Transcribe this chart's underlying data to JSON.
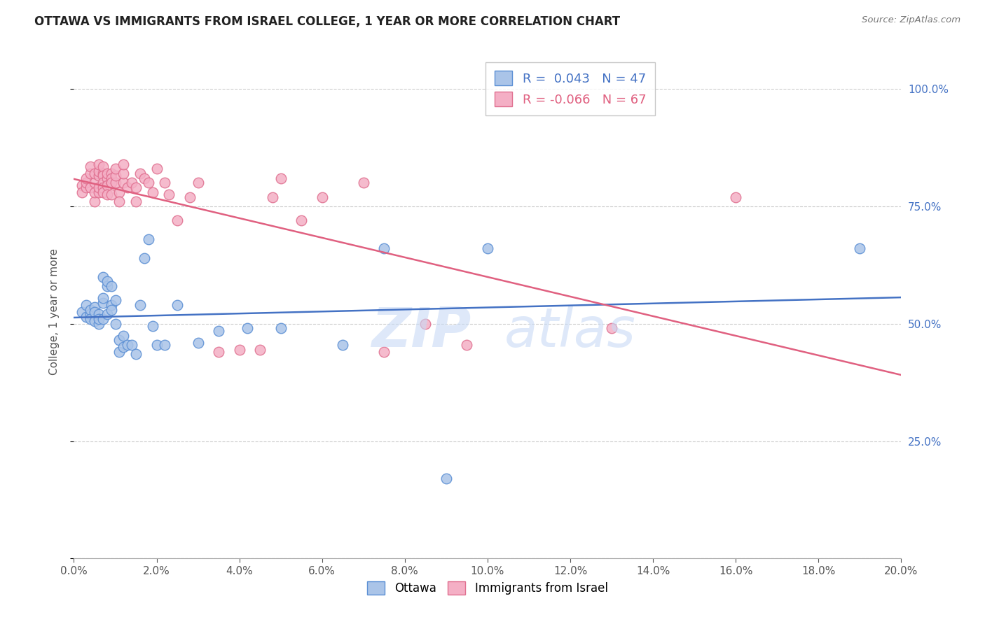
{
  "title": "OTTAWA VS IMMIGRANTS FROM ISRAEL COLLEGE, 1 YEAR OR MORE CORRELATION CHART",
  "source": "Source: ZipAtlas.com",
  "ylabel": "College, 1 year or more",
  "yticks": [
    0.0,
    0.25,
    0.5,
    0.75,
    1.0
  ],
  "ytick_labels": [
    "",
    "25.0%",
    "50.0%",
    "75.0%",
    "100.0%"
  ],
  "xticks": [
    0.0,
    0.02,
    0.04,
    0.06,
    0.08,
    0.1,
    0.12,
    0.14,
    0.16,
    0.18,
    0.2
  ],
  "legend_r_ottawa": "R =  0.043",
  "legend_n_ottawa": "N = 47",
  "legend_r_israel": "R = -0.066",
  "legend_n_israel": "N = 67",
  "ottawa_color": "#aac4e8",
  "israel_color": "#f4afc5",
  "ottawa_edge_color": "#5b8fd4",
  "israel_edge_color": "#e07090",
  "ottawa_line_color": "#4472c4",
  "israel_line_color": "#e06080",
  "watermark_color": "#c8daf5",
  "background_color": "#ffffff",
  "grid_color": "#cccccc",
  "title_color": "#222222",
  "source_color": "#777777",
  "ylabel_color": "#555555",
  "xtick_color": "#555555",
  "ytick_right_color": "#4472c4",
  "ottawa_x": [
    0.002,
    0.003,
    0.003,
    0.004,
    0.004,
    0.004,
    0.005,
    0.005,
    0.005,
    0.006,
    0.006,
    0.006,
    0.007,
    0.007,
    0.007,
    0.007,
    0.008,
    0.008,
    0.008,
    0.009,
    0.009,
    0.009,
    0.01,
    0.01,
    0.011,
    0.011,
    0.012,
    0.012,
    0.013,
    0.014,
    0.015,
    0.016,
    0.017,
    0.018,
    0.019,
    0.02,
    0.022,
    0.025,
    0.03,
    0.035,
    0.042,
    0.05,
    0.065,
    0.075,
    0.09,
    0.1,
    0.19
  ],
  "ottawa_y": [
    0.525,
    0.515,
    0.54,
    0.52,
    0.53,
    0.51,
    0.535,
    0.505,
    0.525,
    0.5,
    0.52,
    0.51,
    0.545,
    0.555,
    0.6,
    0.51,
    0.58,
    0.52,
    0.59,
    0.54,
    0.58,
    0.53,
    0.55,
    0.5,
    0.465,
    0.44,
    0.475,
    0.45,
    0.455,
    0.455,
    0.435,
    0.54,
    0.64,
    0.68,
    0.495,
    0.455,
    0.455,
    0.54,
    0.46,
    0.485,
    0.49,
    0.49,
    0.455,
    0.66,
    0.17,
    0.66,
    0.66
  ],
  "israel_x": [
    0.002,
    0.002,
    0.003,
    0.003,
    0.003,
    0.004,
    0.004,
    0.004,
    0.005,
    0.005,
    0.005,
    0.005,
    0.006,
    0.006,
    0.006,
    0.006,
    0.006,
    0.007,
    0.007,
    0.007,
    0.007,
    0.007,
    0.007,
    0.008,
    0.008,
    0.008,
    0.008,
    0.009,
    0.009,
    0.009,
    0.009,
    0.009,
    0.01,
    0.01,
    0.01,
    0.011,
    0.011,
    0.012,
    0.012,
    0.012,
    0.013,
    0.014,
    0.015,
    0.015,
    0.016,
    0.017,
    0.018,
    0.019,
    0.02,
    0.022,
    0.023,
    0.025,
    0.028,
    0.03,
    0.035,
    0.04,
    0.045,
    0.048,
    0.05,
    0.055,
    0.06,
    0.07,
    0.075,
    0.085,
    0.095,
    0.13,
    0.16
  ],
  "israel_y": [
    0.795,
    0.78,
    0.79,
    0.8,
    0.81,
    0.82,
    0.835,
    0.79,
    0.76,
    0.78,
    0.8,
    0.82,
    0.78,
    0.79,
    0.815,
    0.825,
    0.84,
    0.82,
    0.835,
    0.815,
    0.8,
    0.79,
    0.78,
    0.81,
    0.82,
    0.795,
    0.775,
    0.8,
    0.82,
    0.81,
    0.8,
    0.775,
    0.8,
    0.815,
    0.83,
    0.78,
    0.76,
    0.8,
    0.82,
    0.84,
    0.79,
    0.8,
    0.76,
    0.79,
    0.82,
    0.81,
    0.8,
    0.78,
    0.83,
    0.8,
    0.775,
    0.72,
    0.77,
    0.8,
    0.44,
    0.445,
    0.445,
    0.77,
    0.81,
    0.72,
    0.77,
    0.8,
    0.44,
    0.5,
    0.455,
    0.49,
    0.77
  ]
}
